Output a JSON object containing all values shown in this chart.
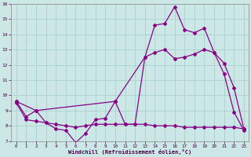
{
  "xlabel": "Windchill (Refroidissement éolien,°C)",
  "background_color": "#cce8e6",
  "grid_color": "#aacfcc",
  "line_color": "#880088",
  "xlim": [
    -0.5,
    23.5
  ],
  "ylim": [
    7,
    16
  ],
  "yticks": [
    7,
    8,
    9,
    10,
    11,
    12,
    13,
    14,
    15,
    16
  ],
  "xticks": [
    0,
    1,
    2,
    3,
    4,
    5,
    6,
    7,
    8,
    9,
    10,
    11,
    12,
    13,
    14,
    15,
    16,
    17,
    18,
    19,
    20,
    21,
    22,
    23
  ],
  "series1_x": [
    0,
    1,
    2,
    3,
    4,
    5,
    6,
    7,
    8,
    9,
    10,
    11,
    12,
    13,
    14,
    15,
    16,
    17,
    18,
    19,
    20,
    21,
    22,
    23
  ],
  "series1_y": [
    9.6,
    8.6,
    9.0,
    8.2,
    7.8,
    7.7,
    6.9,
    7.5,
    8.4,
    8.5,
    9.6,
    8.1,
    8.1,
    12.5,
    14.6,
    14.7,
    15.8,
    14.3,
    14.1,
    14.4,
    12.8,
    11.4,
    8.9,
    7.7
  ],
  "series2_x": [
    0,
    2,
    10,
    13,
    14,
    15,
    16,
    17,
    18,
    19,
    20,
    21,
    22,
    23
  ],
  "series2_y": [
    9.6,
    9.0,
    9.6,
    12.5,
    12.8,
    13.0,
    12.4,
    12.5,
    12.7,
    13.0,
    12.8,
    12.1,
    10.5,
    7.8
  ],
  "series3_x": [
    0,
    1,
    2,
    3,
    4,
    5,
    6,
    7,
    8,
    9,
    10,
    11,
    12,
    13,
    14,
    15,
    16,
    17,
    18,
    19,
    20,
    21,
    22,
    23
  ],
  "series3_y": [
    9.5,
    8.4,
    8.3,
    8.2,
    8.1,
    8.0,
    7.9,
    8.0,
    8.1,
    8.1,
    8.1,
    8.1,
    8.1,
    8.1,
    8.0,
    8.0,
    8.0,
    7.9,
    7.9,
    7.9,
    7.9,
    7.9,
    7.9,
    7.8
  ]
}
